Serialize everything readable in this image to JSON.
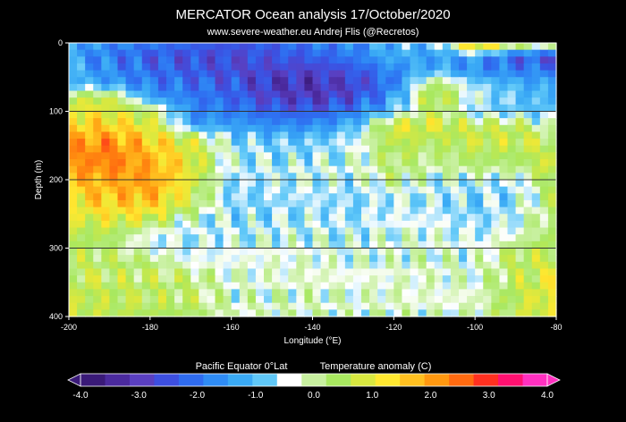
{
  "chart_data": {
    "type": "heatmap",
    "title": "MERCATOR Ocean analysis   17/October/2020",
    "subtitle": "www.severe-weather.eu   Andrej Flis (@Recretos)",
    "xlabel": "Longitude (°E)",
    "ylabel": "Depth (m)",
    "xlim": [
      -200,
      -80
    ],
    "ylim": [
      0,
      400
    ],
    "y_inverted": true,
    "x_ticks": [
      -200,
      -180,
      -160,
      -140,
      -120,
      -100,
      -80
    ],
    "x_tick_labels": [
      "-200",
      "-180",
      "-160",
      "-140",
      "-120",
      "-100",
      "-80"
    ],
    "y_ticks": [
      0,
      100,
      200,
      300,
      400
    ],
    "y_tick_labels": [
      "0",
      "100",
      "200",
      "300",
      "400"
    ],
    "grid": true,
    "colorbar": {
      "label_left": "Pacific Equator 0°Lat",
      "label_right": "Temperature anomaly (C)",
      "min": -4.0,
      "max": 4.0,
      "ticks": [
        -4.0,
        -3.0,
        -2.0,
        -1.0,
        0.0,
        1.0,
        2.0,
        3.0,
        4.0
      ],
      "tick_labels": [
        "-4.0",
        "-3.0",
        "-2.0",
        "-1.0",
        "0.0",
        "1.0",
        "2.0",
        "3.0",
        "4.0"
      ],
      "colors": [
        "#3a1a78",
        "#4b2a9e",
        "#5a3fc0",
        "#3d4fe0",
        "#2f6cf0",
        "#2f8cf5",
        "#3aaaf5",
        "#60c8f8",
        "#ffffff",
        "#c8f0a0",
        "#a8e860",
        "#d8e840",
        "#ffe830",
        "#ffc020",
        "#ff9810",
        "#ff6a10",
        "#ff3020",
        "#ff1070",
        "#ff30c0"
      ]
    },
    "depths": [
      0,
      20,
      40,
      60,
      80,
      100,
      120,
      140,
      160,
      180,
      200,
      220,
      240,
      260,
      280,
      300,
      320,
      340,
      360,
      380,
      400
    ],
    "longitudes": [
      -200,
      -190,
      -180,
      -170,
      -160,
      -150,
      -140,
      -130,
      -120,
      -110,
      -100,
      -90,
      -80
    ],
    "anomaly_grid": [
      [
        -1.2,
        -1.8,
        -2.0,
        -2.3,
        -2.6,
        -2.4,
        -2.0,
        -1.8,
        -1.2,
        -1.0,
        2.5,
        1.0,
        0.5
      ],
      [
        -1.5,
        -2.0,
        -2.5,
        -2.7,
        -2.8,
        -2.6,
        -2.4,
        -2.0,
        -1.2,
        -1.6,
        -1.5,
        -2.5,
        -2.8
      ],
      [
        -1.2,
        -1.8,
        -2.2,
        -2.5,
        -2.8,
        -2.9,
        -3.0,
        -2.6,
        -1.8,
        -1.2,
        -1.8,
        -2.0,
        -2.0
      ],
      [
        -1.0,
        -1.5,
        -2.0,
        -2.2,
        -2.5,
        -3.2,
        -3.3,
        -3.0,
        -2.0,
        0.5,
        -0.8,
        -1.2,
        -1.5
      ],
      [
        0.5,
        0.8,
        -1.5,
        -2.0,
        -2.3,
        -3.0,
        -3.2,
        -2.8,
        -1.5,
        1.0,
        -0.5,
        -1.0,
        -1.2
      ],
      [
        1.2,
        1.0,
        0.5,
        -1.8,
        -2.0,
        -2.4,
        -2.5,
        -2.0,
        -1.0,
        0.5,
        -0.8,
        -1.0,
        -1.0
      ],
      [
        1.5,
        1.5,
        1.0,
        -1.5,
        -1.5,
        -1.8,
        -1.8,
        -1.2,
        1.0,
        1.0,
        0.5,
        0.5,
        -0.5
      ],
      [
        2.0,
        2.2,
        1.5,
        0.8,
        -0.8,
        -1.0,
        -1.0,
        -0.6,
        0.8,
        0.5,
        0.8,
        0.8,
        0.5
      ],
      [
        2.3,
        2.5,
        1.8,
        1.0,
        -0.5,
        -0.8,
        -0.8,
        -0.5,
        0.5,
        0.2,
        0.5,
        0.5,
        0.8
      ],
      [
        2.2,
        2.5,
        2.0,
        1.2,
        -0.6,
        -0.6,
        -0.5,
        -0.4,
        0.3,
        0.0,
        0.3,
        0.2,
        1.0
      ],
      [
        1.8,
        2.0,
        2.2,
        1.0,
        -0.8,
        -0.6,
        -0.5,
        -0.6,
        0.2,
        -0.5,
        -0.5,
        -0.6,
        0.8
      ],
      [
        1.5,
        1.8,
        2.0,
        0.8,
        -0.9,
        -0.7,
        -0.6,
        -0.8,
        -0.5,
        -0.6,
        -0.8,
        -0.8,
        0.5
      ],
      [
        1.2,
        1.5,
        1.5,
        0.5,
        -0.8,
        -0.8,
        -0.7,
        -0.8,
        -0.6,
        -0.7,
        -0.9,
        -0.6,
        0.3
      ],
      [
        0.8,
        1.0,
        0.8,
        -0.5,
        -0.7,
        -0.7,
        -0.6,
        -0.7,
        -0.5,
        -0.5,
        -0.8,
        -0.5,
        0.5
      ],
      [
        0.5,
        0.5,
        -0.5,
        -0.6,
        -0.6,
        -0.5,
        -0.5,
        -0.6,
        -0.4,
        -0.4,
        -0.6,
        -0.4,
        0.5
      ],
      [
        0.5,
        0.3,
        -0.5,
        -0.6,
        -0.5,
        -0.4,
        -0.4,
        -0.5,
        -0.3,
        -0.3,
        -0.5,
        0.4,
        0.6
      ],
      [
        0.5,
        0.4,
        0.3,
        -0.5,
        -0.4,
        -0.3,
        -0.3,
        -0.4,
        -0.3,
        -0.2,
        -0.4,
        0.5,
        0.8
      ],
      [
        0.6,
        0.5,
        0.4,
        0.3,
        -0.3,
        -0.3,
        -0.2,
        -0.4,
        -0.3,
        -0.2,
        -0.3,
        0.5,
        1.0
      ],
      [
        0.7,
        0.6,
        0.5,
        0.3,
        -0.3,
        -0.3,
        -0.2,
        -0.3,
        -0.2,
        -0.3,
        -0.3,
        0.6,
        1.2
      ],
      [
        0.7,
        0.6,
        0.5,
        0.4,
        -0.2,
        -0.2,
        -0.2,
        -0.3,
        -0.2,
        -0.3,
        -0.2,
        0.6,
        1.2
      ],
      [
        0.8,
        0.6,
        0.5,
        0.4,
        -0.2,
        -0.2,
        -0.2,
        -0.3,
        -0.2,
        -0.3,
        -0.2,
        0.6,
        1.0
      ]
    ]
  }
}
